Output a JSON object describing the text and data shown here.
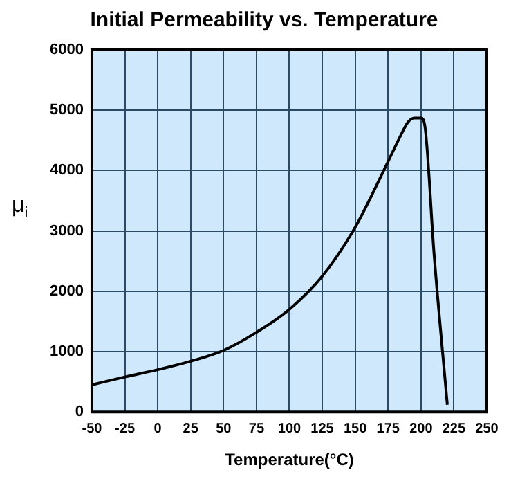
{
  "chart_data": {
    "type": "line",
    "title": "Initial Permeability vs. Temperature",
    "xlabel": "Temperature(°C)",
    "ylabel": "μ$_{i}$",
    "x": [
      -50,
      -25,
      0,
      25,
      50,
      75,
      100,
      125,
      150,
      175,
      185,
      190,
      195,
      200,
      203,
      210,
      220
    ],
    "series": [
      {
        "color": "#000000",
        "values": [
          450,
          580,
          700,
          840,
          1020,
          1320,
          1700,
          2250,
          3060,
          4150,
          4600,
          4800,
          4870,
          4870,
          4730,
          2600,
          120
        ]
      }
    ],
    "xlim": [
      -50,
      250
    ],
    "xticks": [
      -50,
      -25,
      0,
      25,
      50,
      75,
      100,
      125,
      150,
      175,
      200,
      225,
      250
    ],
    "ylim": [
      0,
      6000
    ],
    "yticks": [
      0,
      1000,
      2000,
      3000,
      4000,
      5000,
      6000
    ],
    "grid": true,
    "legend": false,
    "marker": "none",
    "line_style": "solid"
  }
}
